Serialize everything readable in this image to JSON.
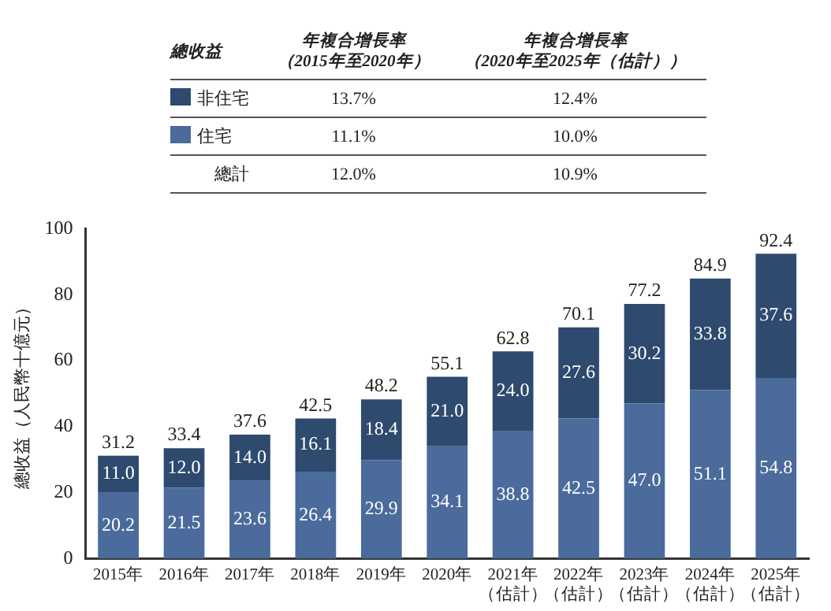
{
  "chart_data": {
    "type": "bar",
    "stacked": true,
    "ylabel": "總收益（人民幣十億元）",
    "categories": [
      "2015年",
      "2016年",
      "2017年",
      "2018年",
      "2019年",
      "2020年",
      "2021年（估計）",
      "2022年（估計）",
      "2023年（估計）",
      "2024年（估計）",
      "2025年（估計）"
    ],
    "series": [
      {
        "name": "住宅",
        "color": "#4a6b9b",
        "values": [
          20.2,
          21.5,
          23.6,
          26.4,
          29.9,
          34.1,
          38.8,
          42.5,
          47.0,
          51.1,
          54.8
        ],
        "value_labels": [
          "20.2",
          "21.5",
          "23.6",
          "26.4",
          "29.9",
          "34.1",
          "38.8",
          "42.5",
          "47.0",
          "51.1",
          "54.8"
        ]
      },
      {
        "name": "非住宅",
        "color": "#2e4a6e",
        "values": [
          11.0,
          12.0,
          14.0,
          16.1,
          18.4,
          21.0,
          24.0,
          27.6,
          30.2,
          33.8,
          37.6
        ],
        "value_labels": [
          "11.0",
          "12.0",
          "14.0",
          "16.1",
          "18.4",
          "21.0",
          "24.0",
          "27.6",
          "30.2",
          "33.8",
          "37.6"
        ]
      }
    ],
    "totals": [
      "31.2",
      "33.4",
      "37.6",
      "42.5",
      "48.2",
      "55.1",
      "62.8",
      "70.1",
      "77.2",
      "84.9",
      "92.4"
    ],
    "ylim": [
      0,
      100
    ],
    "yticks": [
      0,
      20,
      40,
      60,
      80,
      100
    ],
    "grid": false,
    "legend": "top",
    "annotations": [
      "總收益",
      "年複合增長率（2015年至2020年）",
      "年複合增長率（2020年至2025年（估計））",
      "13.7%",
      "12.4%",
      "11.1%",
      "10.0%",
      "總計",
      "12.0%",
      "10.9%"
    ]
  }
}
